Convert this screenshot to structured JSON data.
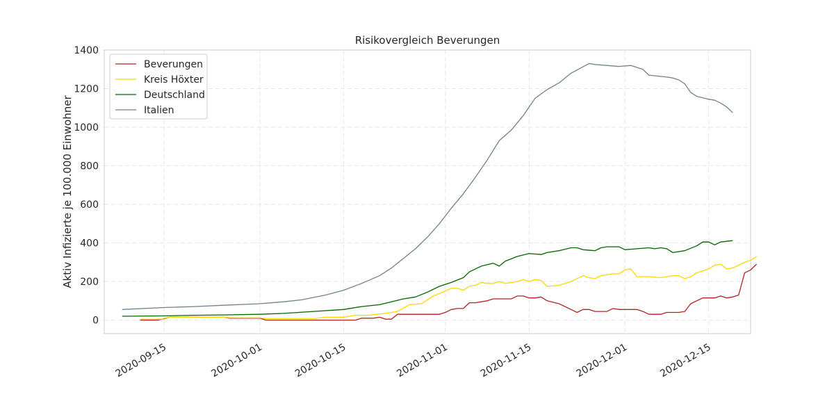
{
  "chart_data": {
    "type": "line",
    "title": "Risikovergleich Beverungen",
    "xlabel": "",
    "ylabel": "Aktiv Infizierte je 100.000 Einwohner",
    "x_start": "2020-09-08",
    "x_end": "2020-12-19",
    "xlim": [
      "2020-09-05",
      "2020-12-22"
    ],
    "ylim": [
      -70,
      1400
    ],
    "yticks": [
      0,
      200,
      400,
      600,
      800,
      1000,
      1200,
      1400
    ],
    "xticks": [
      "2020-09-15",
      "2020-10-01",
      "2020-10-15",
      "2020-11-01",
      "2020-11-15",
      "2020-12-01",
      "2020-12-15"
    ],
    "grid": true,
    "legend_position": "top-left",
    "series": [
      {
        "name": "Beverungen",
        "color": "#b22222",
        "points": [
          [
            "2020-09-11",
            0
          ],
          [
            "2020-09-14",
            0
          ],
          [
            "2020-09-16",
            15
          ],
          [
            "2020-09-25",
            15
          ],
          [
            "2020-09-26",
            10
          ],
          [
            "2020-10-01",
            10
          ],
          [
            "2020-10-02",
            0
          ],
          [
            "2020-10-17",
            0
          ],
          [
            "2020-10-18",
            10
          ],
          [
            "2020-10-20",
            10
          ],
          [
            "2020-10-21",
            15
          ],
          [
            "2020-10-22",
            5
          ],
          [
            "2020-10-23",
            5
          ],
          [
            "2020-10-24",
            30
          ],
          [
            "2020-10-31",
            30
          ],
          [
            "2020-11-01",
            40
          ],
          [
            "2020-11-02",
            55
          ],
          [
            "2020-11-03",
            60
          ],
          [
            "2020-11-04",
            60
          ],
          [
            "2020-11-05",
            90
          ],
          [
            "2020-11-06",
            90
          ],
          [
            "2020-11-08",
            100
          ],
          [
            "2020-11-09",
            110
          ],
          [
            "2020-11-12",
            110
          ],
          [
            "2020-11-13",
            125
          ],
          [
            "2020-11-14",
            125
          ],
          [
            "2020-11-15",
            115
          ],
          [
            "2020-11-16",
            115
          ],
          [
            "2020-11-17",
            120
          ],
          [
            "2020-11-18",
            100
          ],
          [
            "2020-11-20",
            85
          ],
          [
            "2020-11-22",
            55
          ],
          [
            "2020-11-23",
            40
          ],
          [
            "2020-11-24",
            55
          ],
          [
            "2020-11-25",
            55
          ],
          [
            "2020-11-26",
            45
          ],
          [
            "2020-11-28",
            45
          ],
          [
            "2020-11-29",
            60
          ],
          [
            "2020-11-30",
            55
          ],
          [
            "2020-12-03",
            55
          ],
          [
            "2020-12-04",
            45
          ],
          [
            "2020-12-05",
            30
          ],
          [
            "2020-12-07",
            30
          ],
          [
            "2020-12-08",
            40
          ],
          [
            "2020-12-10",
            40
          ],
          [
            "2020-12-11",
            45
          ],
          [
            "2020-12-12",
            85
          ],
          [
            "2020-12-14",
            115
          ],
          [
            "2020-12-16",
            115
          ],
          [
            "2020-12-17",
            125
          ],
          [
            "2020-12-18",
            115
          ],
          [
            "2020-12-19",
            120
          ],
          [
            "2020-12-20",
            130
          ],
          [
            "2020-12-21",
            245
          ],
          [
            "2020-12-22",
            260
          ],
          [
            "2020-12-23",
            290
          ]
        ]
      },
      {
        "name": "Kreis Höxter",
        "color": "#ffd700",
        "points": [
          [
            "2020-09-11",
            5
          ],
          [
            "2020-09-15",
            5
          ],
          [
            "2020-09-16",
            15
          ],
          [
            "2020-09-25",
            15
          ],
          [
            "2020-09-26",
            12
          ],
          [
            "2020-10-01",
            12
          ],
          [
            "2020-10-02",
            8
          ],
          [
            "2020-10-10",
            8
          ],
          [
            "2020-10-12",
            15
          ],
          [
            "2020-10-15",
            15
          ],
          [
            "2020-10-17",
            25
          ],
          [
            "2020-10-19",
            25
          ],
          [
            "2020-10-22",
            35
          ],
          [
            "2020-10-24",
            45
          ],
          [
            "2020-10-26",
            80
          ],
          [
            "2020-10-28",
            85
          ],
          [
            "2020-10-30",
            125
          ],
          [
            "2020-11-01",
            150
          ],
          [
            "2020-11-02",
            165
          ],
          [
            "2020-11-03",
            165
          ],
          [
            "2020-11-04",
            155
          ],
          [
            "2020-11-05",
            175
          ],
          [
            "2020-11-06",
            180
          ],
          [
            "2020-11-07",
            195
          ],
          [
            "2020-11-08",
            190
          ],
          [
            "2020-11-09",
            190
          ],
          [
            "2020-11-10",
            200
          ],
          [
            "2020-11-11",
            190
          ],
          [
            "2020-11-13",
            200
          ],
          [
            "2020-11-14",
            210
          ],
          [
            "2020-11-15",
            200
          ],
          [
            "2020-11-16",
            210
          ],
          [
            "2020-11-17",
            205
          ],
          [
            "2020-11-18",
            175
          ],
          [
            "2020-11-20",
            180
          ],
          [
            "2020-11-22",
            200
          ],
          [
            "2020-11-24",
            230
          ],
          [
            "2020-11-25",
            220
          ],
          [
            "2020-11-26",
            215
          ],
          [
            "2020-11-27",
            230
          ],
          [
            "2020-11-29",
            240
          ],
          [
            "2020-11-30",
            240
          ],
          [
            "2020-12-01",
            260
          ],
          [
            "2020-12-02",
            265
          ],
          [
            "2020-12-03",
            225
          ],
          [
            "2020-12-05",
            225
          ],
          [
            "2020-12-07",
            220
          ],
          [
            "2020-12-08",
            225
          ],
          [
            "2020-12-09",
            230
          ],
          [
            "2020-12-10",
            230
          ],
          [
            "2020-12-11",
            215
          ],
          [
            "2020-12-12",
            225
          ],
          [
            "2020-12-13",
            245
          ],
          [
            "2020-12-15",
            265
          ],
          [
            "2020-12-16",
            285
          ],
          [
            "2020-12-17",
            290
          ],
          [
            "2020-12-18",
            265
          ],
          [
            "2020-12-19",
            270
          ],
          [
            "2020-12-20",
            285
          ],
          [
            "2020-12-21",
            300
          ],
          [
            "2020-12-22",
            310
          ],
          [
            "2020-12-23",
            330
          ]
        ]
      },
      {
        "name": "Deutschland",
        "color": "#006400",
        "points": [
          [
            "2020-09-08",
            20
          ],
          [
            "2020-09-15",
            22
          ],
          [
            "2020-09-20",
            25
          ],
          [
            "2020-09-25",
            27
          ],
          [
            "2020-10-01",
            30
          ],
          [
            "2020-10-05",
            35
          ],
          [
            "2020-10-10",
            45
          ],
          [
            "2020-10-15",
            55
          ],
          [
            "2020-10-18",
            70
          ],
          [
            "2020-10-21",
            80
          ],
          [
            "2020-10-23",
            95
          ],
          [
            "2020-10-25",
            110
          ],
          [
            "2020-10-27",
            120
          ],
          [
            "2020-10-29",
            145
          ],
          [
            "2020-10-31",
            175
          ],
          [
            "2020-11-02",
            195
          ],
          [
            "2020-11-04",
            220
          ],
          [
            "2020-11-05",
            250
          ],
          [
            "2020-11-07",
            280
          ],
          [
            "2020-11-09",
            295
          ],
          [
            "2020-11-10",
            280
          ],
          [
            "2020-11-11",
            305
          ],
          [
            "2020-11-13",
            330
          ],
          [
            "2020-11-15",
            345
          ],
          [
            "2020-11-17",
            340
          ],
          [
            "2020-11-18",
            350
          ],
          [
            "2020-11-20",
            360
          ],
          [
            "2020-11-22",
            375
          ],
          [
            "2020-11-23",
            375
          ],
          [
            "2020-11-24",
            365
          ],
          [
            "2020-11-26",
            360
          ],
          [
            "2020-11-27",
            375
          ],
          [
            "2020-11-28",
            380
          ],
          [
            "2020-11-30",
            380
          ],
          [
            "2020-12-01",
            365
          ],
          [
            "2020-12-03",
            370
          ],
          [
            "2020-12-05",
            375
          ],
          [
            "2020-12-06",
            370
          ],
          [
            "2020-12-07",
            375
          ],
          [
            "2020-12-08",
            370
          ],
          [
            "2020-12-09",
            350
          ],
          [
            "2020-12-11",
            360
          ],
          [
            "2020-12-13",
            385
          ],
          [
            "2020-12-14",
            405
          ],
          [
            "2020-12-15",
            405
          ],
          [
            "2020-12-16",
            390
          ],
          [
            "2020-12-17",
            405
          ],
          [
            "2020-12-19",
            412
          ]
        ]
      },
      {
        "name": "Italien",
        "color": "#708090",
        "points": [
          [
            "2020-09-08",
            55
          ],
          [
            "2020-09-15",
            65
          ],
          [
            "2020-09-20",
            70
          ],
          [
            "2020-09-25",
            77
          ],
          [
            "2020-10-01",
            85
          ],
          [
            "2020-10-05",
            95
          ],
          [
            "2020-10-08",
            105
          ],
          [
            "2020-10-12",
            130
          ],
          [
            "2020-10-15",
            155
          ],
          [
            "2020-10-18",
            190
          ],
          [
            "2020-10-21",
            230
          ],
          [
            "2020-10-23",
            270
          ],
          [
            "2020-10-25",
            320
          ],
          [
            "2020-10-27",
            370
          ],
          [
            "2020-10-29",
            430
          ],
          [
            "2020-10-31",
            500
          ],
          [
            "2020-11-02",
            580
          ],
          [
            "2020-11-04",
            655
          ],
          [
            "2020-11-06",
            740
          ],
          [
            "2020-11-08",
            830
          ],
          [
            "2020-11-10",
            930
          ],
          [
            "2020-11-12",
            985
          ],
          [
            "2020-11-14",
            1060
          ],
          [
            "2020-11-16",
            1150
          ],
          [
            "2020-11-18",
            1195
          ],
          [
            "2020-11-20",
            1230
          ],
          [
            "2020-11-22",
            1280
          ],
          [
            "2020-11-25",
            1330
          ],
          [
            "2020-11-26",
            1325
          ],
          [
            "2020-11-28",
            1320
          ],
          [
            "2020-11-30",
            1315
          ],
          [
            "2020-12-02",
            1320
          ],
          [
            "2020-12-04",
            1300
          ],
          [
            "2020-12-05",
            1270
          ],
          [
            "2020-12-08",
            1260
          ],
          [
            "2020-12-09",
            1255
          ],
          [
            "2020-12-10",
            1245
          ],
          [
            "2020-12-11",
            1225
          ],
          [
            "2020-12-12",
            1180
          ],
          [
            "2020-12-13",
            1160
          ],
          [
            "2020-12-15",
            1145
          ],
          [
            "2020-12-16",
            1140
          ],
          [
            "2020-12-17",
            1125
          ],
          [
            "2020-12-18",
            1105
          ],
          [
            "2020-12-19",
            1075
          ]
        ]
      }
    ]
  }
}
